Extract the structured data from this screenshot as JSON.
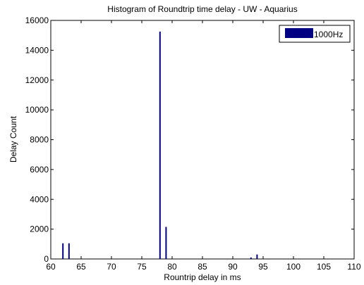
{
  "chart_data": {
    "type": "bar",
    "title": "Histogram of Roundtrip time delay - UW - Aquarius",
    "xlabel": "Rountrip delay in ms",
    "ylabel": "Delay Count",
    "xlim": [
      60,
      110
    ],
    "ylim": [
      0,
      16000
    ],
    "xticks": [
      60,
      65,
      70,
      75,
      80,
      85,
      90,
      95,
      100,
      105,
      110
    ],
    "yticks": [
      0,
      2000,
      4000,
      6000,
      8000,
      10000,
      12000,
      14000,
      16000
    ],
    "grid": false,
    "legend_position": "top-right",
    "series": [
      {
        "name": "1000Hz",
        "color": "#000080",
        "x": [
          62,
          63,
          78,
          79,
          93,
          94
        ],
        "values": [
          1050,
          1050,
          15250,
          2150,
          100,
          300
        ]
      }
    ]
  }
}
